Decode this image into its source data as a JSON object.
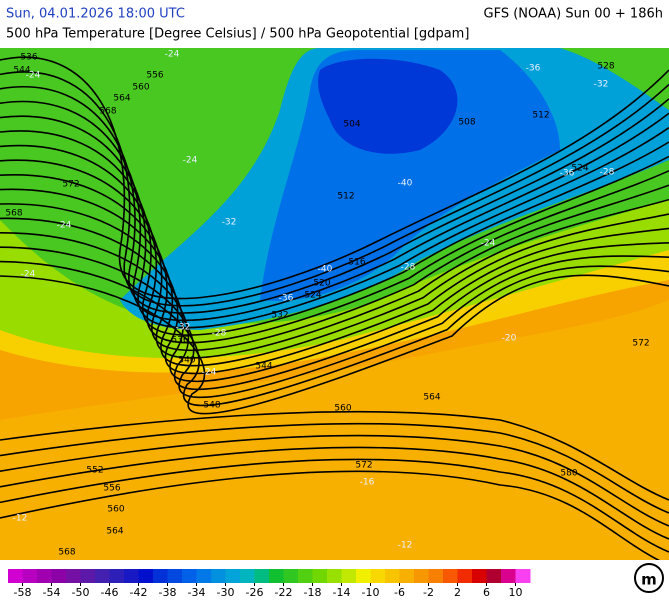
{
  "header": {
    "datetime": "Sun, 04.01.2026 18:00 UTC",
    "model": "GFS (NOAA) Sun 00 + 186h",
    "subtitle": "500 hPa Temperature [Degree Celsius] / 500 hPa Geopotential [gdpam]"
  },
  "geopotential_labels": [
    536,
    544,
    556,
    560,
    564,
    568,
    572,
    568,
    504,
    508,
    512,
    528,
    524,
    512,
    516,
    520,
    524,
    532,
    536,
    540,
    544,
    548,
    560,
    564,
    572,
    580,
    552,
    556,
    560,
    564,
    568,
    572
  ],
  "temperature_labels": [
    -36,
    -32,
    -24,
    -24,
    -24,
    -24,
    -24,
    -32,
    -40,
    -36,
    -28,
    -24,
    -28,
    -40,
    -36,
    -32,
    -28,
    -24,
    -20,
    -16,
    -12,
    -12
  ],
  "colorbar": {
    "colors": [
      "#d000d0",
      "#b800c0",
      "#a000b0",
      "#8c00a8",
      "#7410a4",
      "#5c18a8",
      "#4420b0",
      "#2c20b8",
      "#1818c4",
      "#0010cc",
      "#0030d8",
      "#0048e0",
      "#0060e8",
      "#0078e8",
      "#0090e0",
      "#00a4d8",
      "#00b4c0",
      "#00bc80",
      "#10c030",
      "#30c820",
      "#50d010",
      "#70d800",
      "#98e000",
      "#c0e800",
      "#f0f000",
      "#f8d800",
      "#f8c400",
      "#f8b000",
      "#f89800",
      "#f88000",
      "#f85800",
      "#f02c00",
      "#d80000",
      "#b00030",
      "#d8008c",
      "#f840f0"
    ],
    "range": [
      -60,
      12
    ],
    "ticks": [
      -58,
      -54,
      -50,
      -46,
      -42,
      -38,
      -34,
      -30,
      -26,
      -22,
      -18,
      -14,
      -10,
      -6,
      -2,
      2,
      6,
      10
    ]
  }
}
